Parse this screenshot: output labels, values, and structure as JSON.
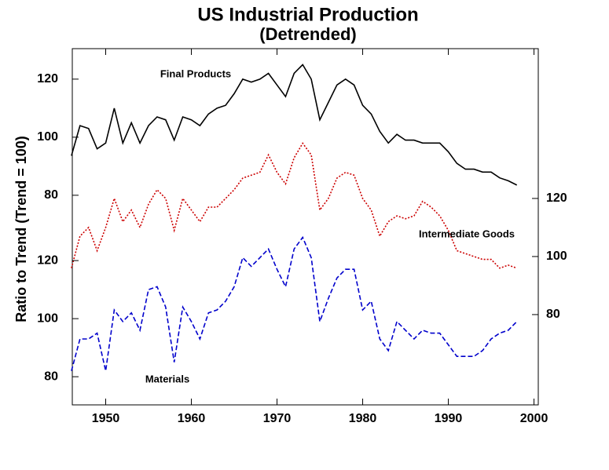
{
  "chart_data": [
    {
      "type": "line",
      "title": "US Industrial Production",
      "subtitle": "(Detrended)",
      "y_label": "Ratio to Trend (Trend = 100)",
      "xlim": [
        1946.1,
        2000.5
      ],
      "xticks": [
        1950,
        1960,
        1970,
        1980,
        1990,
        2000
      ],
      "ylim": [
        7.8,
        130.5
      ],
      "yticks": [
        80,
        100,
        120
      ],
      "y_axis_side": "left",
      "x": [
        1946,
        1947,
        1948,
        1949,
        1950,
        1951,
        1952,
        1953,
        1954,
        1955,
        1956,
        1957,
        1958,
        1959,
        1960,
        1961,
        1962,
        1963,
        1964,
        1965,
        1966,
        1967,
        1968,
        1969,
        1970,
        1971,
        1972,
        1973,
        1974,
        1975,
        1976,
        1977,
        1978,
        1979,
        1980,
        1981,
        1982,
        1983,
        1984,
        1985,
        1986,
        1987,
        1988,
        1989,
        1990,
        1991,
        1992,
        1993,
        1994,
        1995,
        1996,
        1997,
        1998
      ],
      "series": [
        {
          "name": "Final Products",
          "color": "#000000",
          "dash": "solid",
          "values": [
            93.6,
            104,
            103,
            96,
            98,
            110,
            98,
            105,
            98,
            104,
            107,
            106,
            99,
            107,
            106,
            104,
            108,
            110,
            111,
            115,
            120,
            119,
            120,
            122,
            118,
            114,
            122,
            125,
            120,
            106,
            112,
            118,
            120,
            118,
            111,
            108,
            102,
            98,
            101,
            99,
            99,
            98,
            98,
            98,
            95,
            91,
            89,
            89,
            88,
            88,
            86,
            85,
            83.5
          ]
        }
      ]
    },
    {
      "type": "line",
      "xlim": [
        1946.1,
        2000.5
      ],
      "ylim": [
        48.9,
        171.6
      ],
      "yticks": [
        80,
        100,
        120
      ],
      "y_axis_side": "right",
      "x": [
        1946,
        1947,
        1948,
        1949,
        1950,
        1951,
        1952,
        1953,
        1954,
        1955,
        1956,
        1957,
        1958,
        1959,
        1960,
        1961,
        1962,
        1963,
        1964,
        1965,
        1966,
        1967,
        1968,
        1969,
        1970,
        1971,
        1972,
        1973,
        1974,
        1975,
        1976,
        1977,
        1978,
        1979,
        1980,
        1981,
        1982,
        1983,
        1984,
        1985,
        1986,
        1987,
        1988,
        1989,
        1990,
        1991,
        1992,
        1993,
        1994,
        1995,
        1996,
        1997,
        1998
      ],
      "series": [
        {
          "name": "Intermediate Goods",
          "color": "#cc0000",
          "dash": "dotted",
          "values": [
            96,
            107,
            110,
            102,
            110,
            120,
            112,
            116,
            110,
            118,
            123,
            120,
            109,
            120,
            116,
            112,
            117,
            117,
            120,
            123,
            127,
            128,
            129,
            135,
            129,
            125,
            134,
            139,
            135,
            116,
            120,
            127,
            129,
            128,
            120,
            116,
            107,
            112,
            114,
            113,
            114,
            119,
            117,
            114,
            109,
            102,
            101,
            100,
            99,
            99,
            96,
            97,
            96
          ]
        }
      ]
    },
    {
      "type": "line",
      "xlim": [
        1946.1,
        2000.5
      ],
      "ylim": [
        70.3,
        193
      ],
      "yticks": [
        80,
        100,
        120
      ],
      "y_axis_side": "left",
      "x": [
        1946,
        1947,
        1948,
        1949,
        1950,
        1951,
        1952,
        1953,
        1954,
        1955,
        1956,
        1957,
        1958,
        1959,
        1960,
        1961,
        1962,
        1963,
        1964,
        1965,
        1966,
        1967,
        1968,
        1969,
        1970,
        1971,
        1972,
        1973,
        1974,
        1975,
        1976,
        1977,
        1978,
        1979,
        1980,
        1981,
        1982,
        1983,
        1984,
        1985,
        1986,
        1987,
        1988,
        1989,
        1990,
        1991,
        1992,
        1993,
        1994,
        1995,
        1996,
        1997,
        1998
      ],
      "series": [
        {
          "name": "Materials",
          "color": "#0000cc",
          "dash": "dashed",
          "values": [
            82,
            93,
            93,
            95,
            82,
            103,
            99,
            102,
            96,
            110,
            111,
            104,
            85,
            104,
            99,
            93,
            102,
            103,
            106,
            111,
            121,
            118,
            121,
            124,
            117,
            111,
            124,
            128,
            121,
            99,
            107,
            114,
            117,
            117,
            103,
            106,
            93,
            89,
            99,
            96,
            93,
            96,
            95,
            95,
            91,
            87,
            87,
            87,
            89,
            93,
            95,
            96,
            99
          ]
        }
      ]
    }
  ]
}
